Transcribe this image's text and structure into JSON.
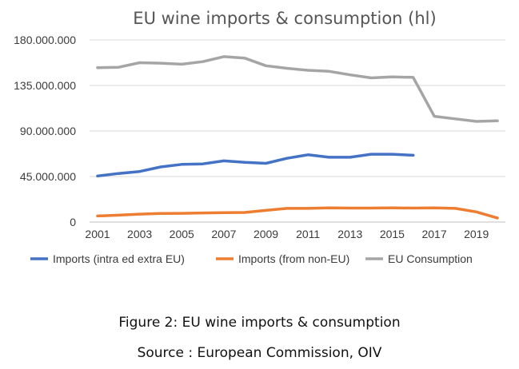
{
  "chart_data": {
    "type": "line",
    "title": "EU wine imports & consumption (hl)",
    "x": [
      2001,
      2002,
      2003,
      2004,
      2005,
      2006,
      2007,
      2008,
      2009,
      2010,
      2011,
      2012,
      2013,
      2014,
      2015,
      2016,
      2017,
      2018,
      2019,
      2020
    ],
    "x_tick_labels": [
      "2001",
      "2003",
      "2005",
      "2007",
      "2009",
      "2011",
      "2013",
      "2015",
      "2017",
      "2019"
    ],
    "y_tick_labels": [
      "0",
      "45.000.000",
      "90.000.000",
      "135.000.000",
      "180.000.000"
    ],
    "ylim": [
      0,
      180000000
    ],
    "grid": true,
    "legend_position": "bottom",
    "series": [
      {
        "name": "Imports (intra ed extra EU)",
        "color": "#4472c4",
        "values": [
          45500000,
          48000000,
          50000000,
          54500000,
          57000000,
          57500000,
          60500000,
          59000000,
          58000000,
          63000000,
          66500000,
          64000000,
          64000000,
          67000000,
          67000000,
          66000000,
          null,
          null,
          null,
          null
        ]
      },
      {
        "name": "Imports (from non-EU)",
        "color": "#ed7d31",
        "values": [
          6000000,
          6800000,
          7800000,
          8500000,
          8600000,
          9000000,
          9200000,
          9500000,
          11500000,
          13500000,
          13500000,
          14000000,
          13800000,
          13800000,
          14000000,
          13800000,
          14000000,
          13500000,
          10000000,
          4000000
        ]
      },
      {
        "name": "EU Consumption",
        "color": "#a5a5a5",
        "values": [
          152500000,
          153000000,
          157500000,
          157000000,
          156000000,
          158500000,
          163500000,
          162000000,
          154500000,
          152000000,
          150000000,
          149000000,
          145500000,
          142500000,
          143500000,
          143000000,
          104500000,
          102000000,
          99500000,
          100000000
        ]
      }
    ]
  },
  "caption": "Figure 2: EU wine imports & consumption",
  "source": "Source : European Commission, OIV"
}
